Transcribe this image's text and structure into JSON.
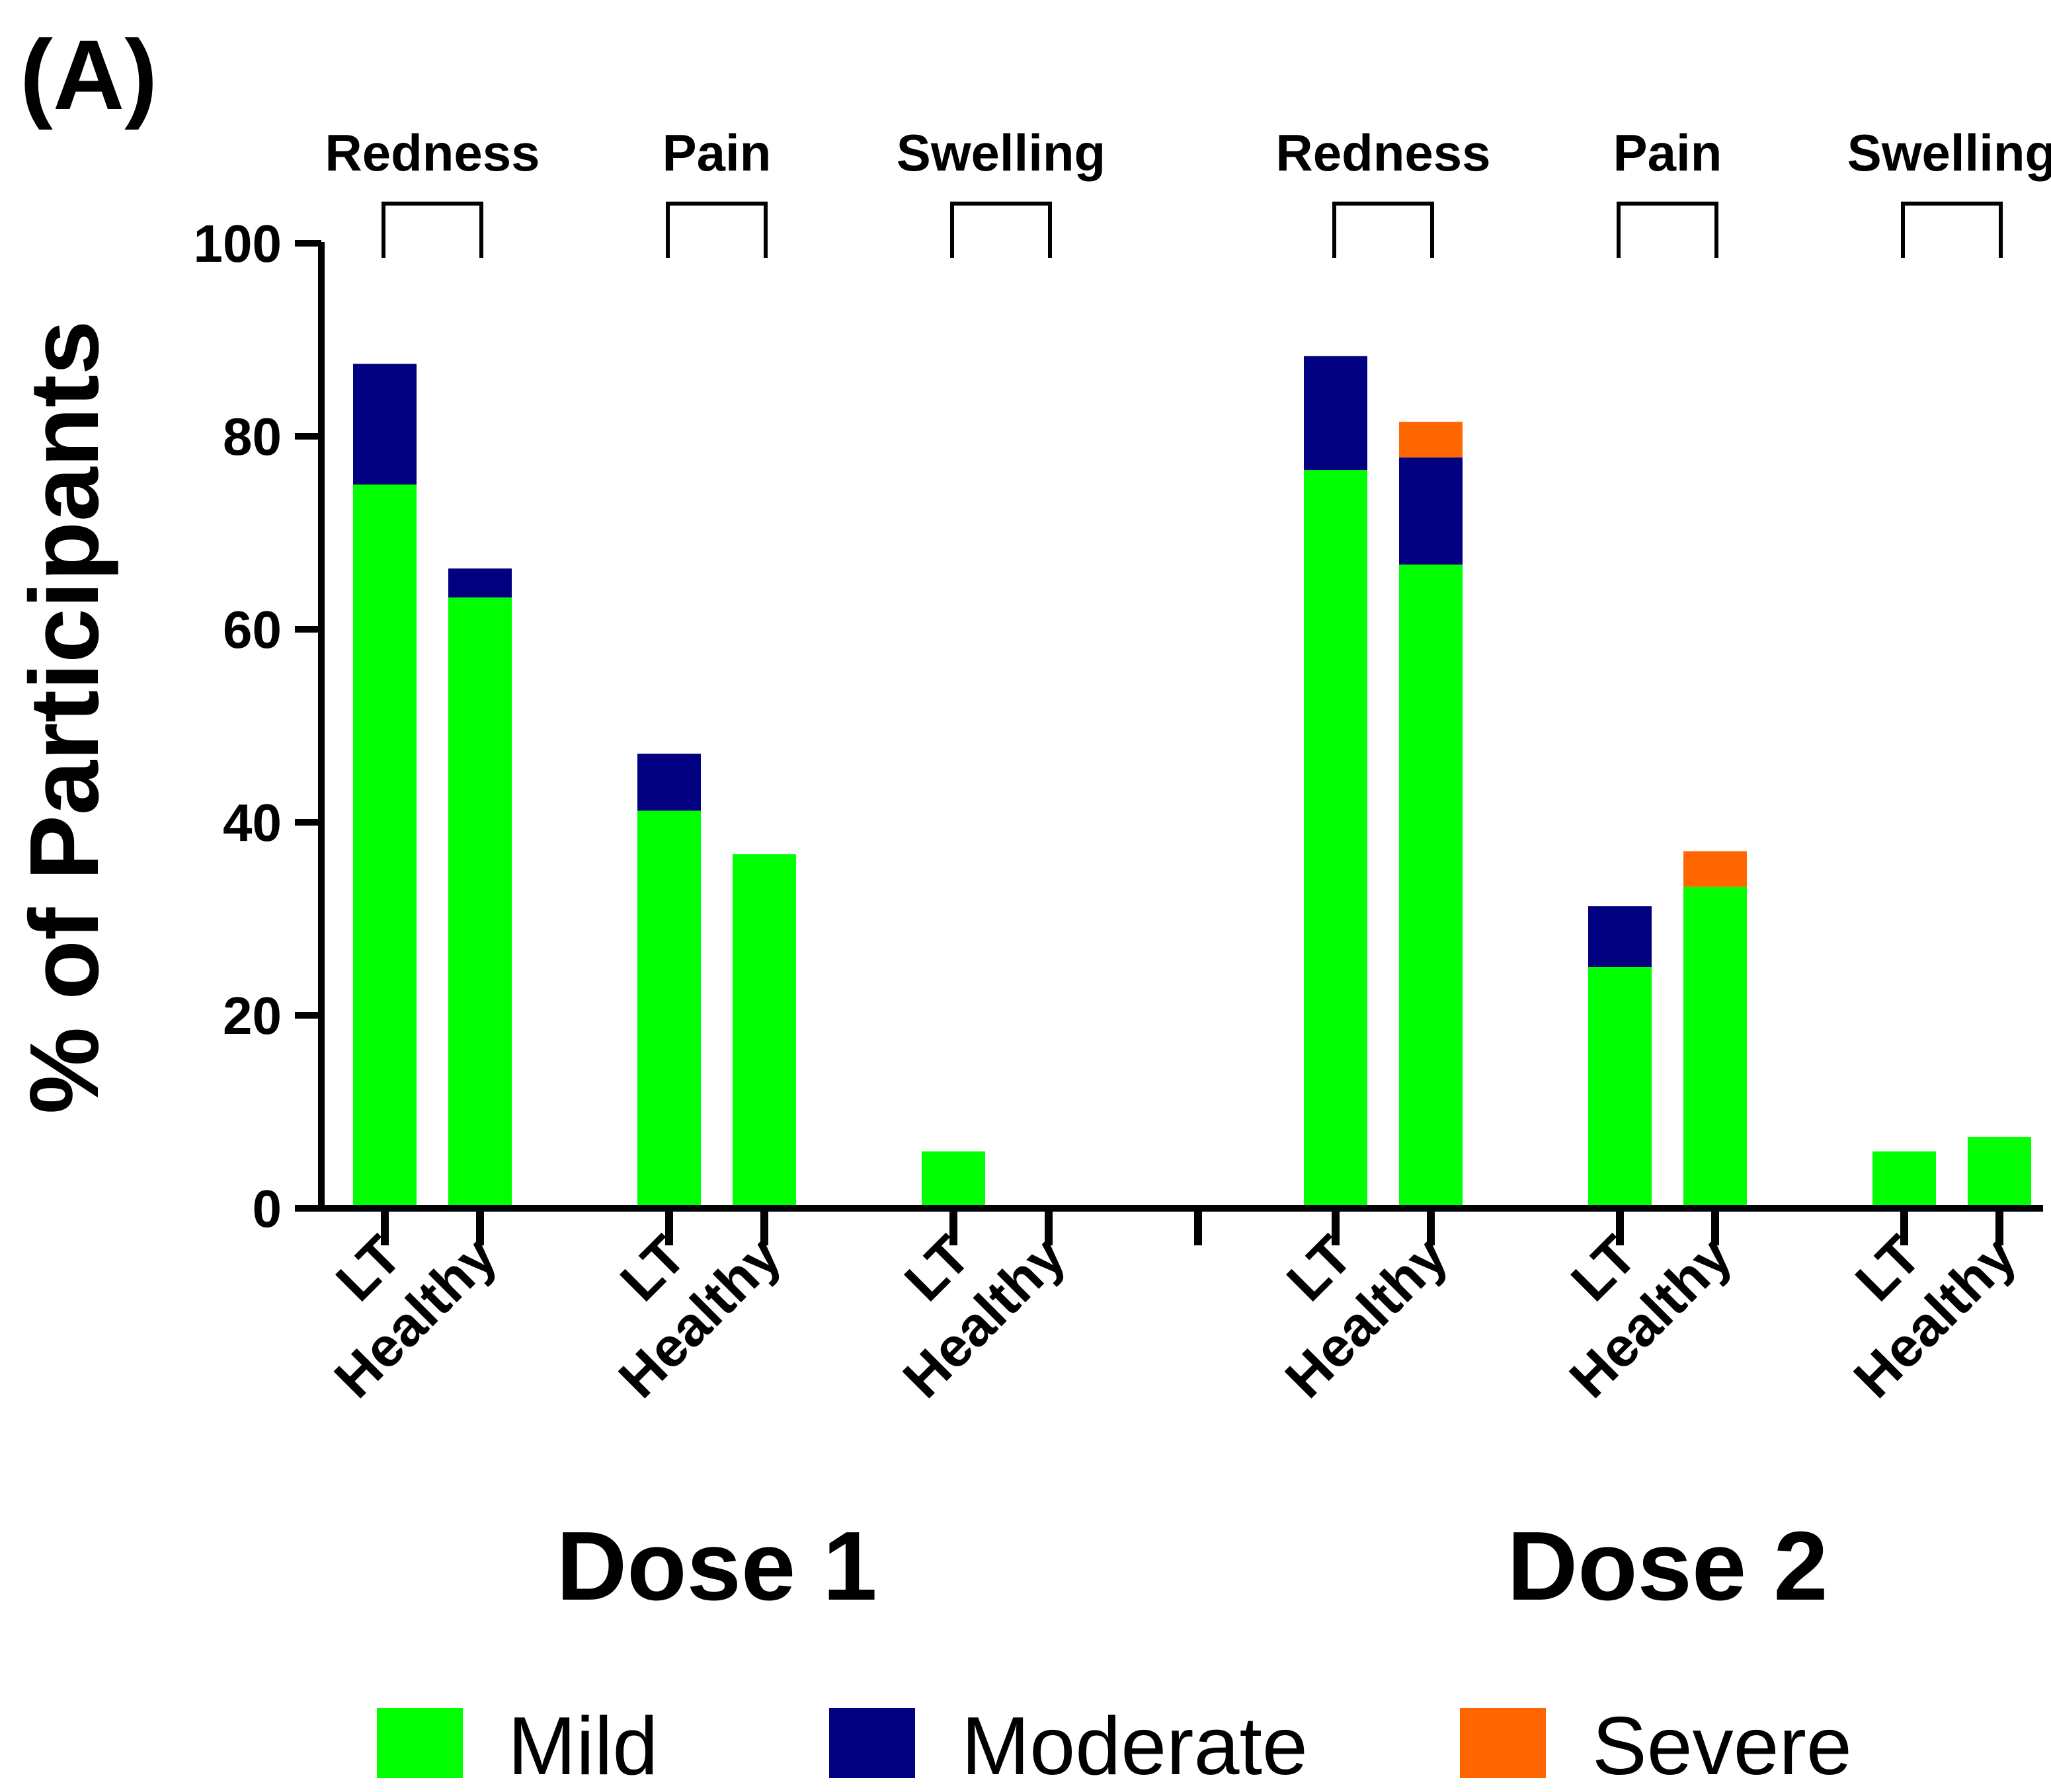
{
  "panel_label": "(A)",
  "chart_data": {
    "type": "bar",
    "stacked": true,
    "ylabel": "% of Participants",
    "ylim": [
      0,
      100
    ],
    "yticks": [
      0,
      20,
      40,
      60,
      80,
      100
    ],
    "grid": false,
    "legend_position": "bottom",
    "colors": {
      "Mild": "#00ff00",
      "Moderate": "#000080",
      "Severe": "#ff6600"
    },
    "legend": [
      "Mild",
      "Moderate",
      "Severe"
    ],
    "doses": [
      {
        "name": "Dose 1",
        "groups": [
          {
            "label": "Redness",
            "bars": [
              {
                "category": "LT",
                "values": {
                  "Mild": 75,
                  "Moderate": 12.5,
                  "Severe": 0
                }
              },
              {
                "category": "Healthy",
                "values": {
                  "Mild": 63.3,
                  "Moderate": 3,
                  "Severe": 0
                }
              }
            ]
          },
          {
            "label": "Pain",
            "bars": [
              {
                "category": "LT",
                "values": {
                  "Mild": 41.2,
                  "Moderate": 5.9,
                  "Severe": 0
                }
              },
              {
                "category": "Healthy",
                "values": {
                  "Mild": 36.7,
                  "Moderate": 0,
                  "Severe": 0
                }
              }
            ]
          },
          {
            "label": "Swelling",
            "bars": [
              {
                "category": "LT",
                "values": {
                  "Mild": 5.9,
                  "Moderate": 0,
                  "Severe": 0
                }
              },
              {
                "category": "Healthy",
                "values": {
                  "Mild": 0,
                  "Moderate": 0,
                  "Severe": 0
                }
              }
            ]
          }
        ]
      },
      {
        "name": "Dose 2",
        "groups": [
          {
            "label": "Redness",
            "bars": [
              {
                "category": "LT",
                "values": {
                  "Mild": 76.5,
                  "Moderate": 11.8,
                  "Severe": 0
                }
              },
              {
                "category": "Healthy",
                "values": {
                  "Mild": 66.7,
                  "Moderate": 11.1,
                  "Severe": 3.7
                }
              }
            ]
          },
          {
            "label": "Pain",
            "bars": [
              {
                "category": "LT",
                "values": {
                  "Mild": 25,
                  "Moderate": 6.3,
                  "Severe": 0
                }
              },
              {
                "category": "Healthy",
                "values": {
                  "Mild": 33.3,
                  "Moderate": 0,
                  "Severe": 3.7
                }
              }
            ]
          },
          {
            "label": "Swelling",
            "bars": [
              {
                "category": "LT",
                "values": {
                  "Mild": 5.9,
                  "Moderate": 0,
                  "Severe": 0
                }
              },
              {
                "category": "Healthy",
                "values": {
                  "Mild": 7.4,
                  "Moderate": 0,
                  "Severe": 0
                }
              }
            ]
          }
        ]
      }
    ]
  }
}
